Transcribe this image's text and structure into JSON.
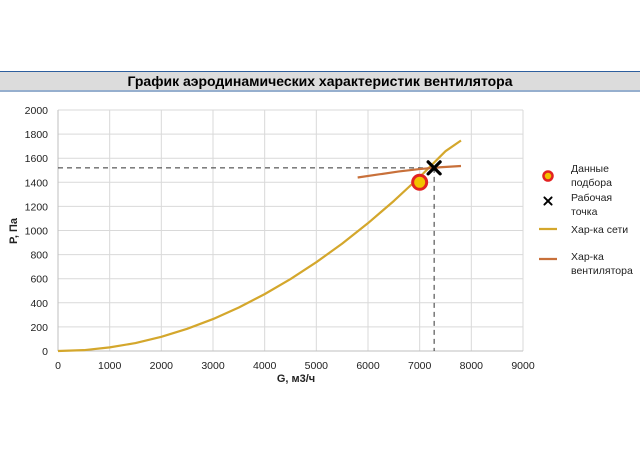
{
  "chart_data": {
    "type": "line",
    "title": "График аэродинамических характеристик вентилятора",
    "xlabel": "G, м3/ч",
    "ylabel": "P, Па",
    "xlim": [
      0,
      9000
    ],
    "ylim": [
      0,
      2000
    ],
    "xticks": [
      0,
      1000,
      2000,
      3000,
      4000,
      5000,
      6000,
      7000,
      8000,
      9000
    ],
    "yticks": [
      0,
      200,
      400,
      600,
      800,
      1000,
      1200,
      1400,
      1600,
      1800,
      2000
    ],
    "grid": true,
    "legend_position": "right",
    "series": [
      {
        "name": "Хар-ка сети",
        "kind": "line",
        "color": "#d4a72c",
        "x": [
          0,
          500,
          1000,
          1500,
          2000,
          2500,
          3000,
          3500,
          4000,
          4500,
          5000,
          5500,
          6000,
          6500,
          7000,
          7500,
          7800
        ],
        "y": [
          0,
          7,
          30,
          66,
          118,
          184,
          265,
          361,
          472,
          597,
          737,
          891,
          1061,
          1245,
          1444,
          1658,
          1747
        ]
      },
      {
        "name": "Хар-ка вентилятора",
        "kind": "line",
        "color": "#c8703a",
        "x": [
          5800,
          6200,
          6600,
          7000,
          7400,
          7800
        ],
        "y": [
          1440,
          1465,
          1490,
          1510,
          1525,
          1535
        ]
      },
      {
        "name": "Данные подбора",
        "kind": "marker",
        "marker": "ring",
        "color": "#e32222",
        "fill": "#f2c200",
        "x": [
          7000
        ],
        "y": [
          1400
        ]
      },
      {
        "name": "Рабочая точка",
        "kind": "marker",
        "marker": "x",
        "color": "#000000",
        "x": [
          7280
        ],
        "y": [
          1520
        ]
      }
    ],
    "reference_lines": [
      {
        "type": "horizontal",
        "y": 1520,
        "x_to": 7280,
        "style": "dashed",
        "color": "#333333"
      },
      {
        "type": "vertical",
        "x": 7280,
        "y_to": 1520,
        "style": "dashed",
        "color": "#333333"
      }
    ]
  },
  "colors": {
    "title_bar_bg": "#dcdcdc",
    "title_bar_border": "#2e5f9e",
    "grid": "#d9d9d9",
    "axis": "#bfbfbf"
  }
}
